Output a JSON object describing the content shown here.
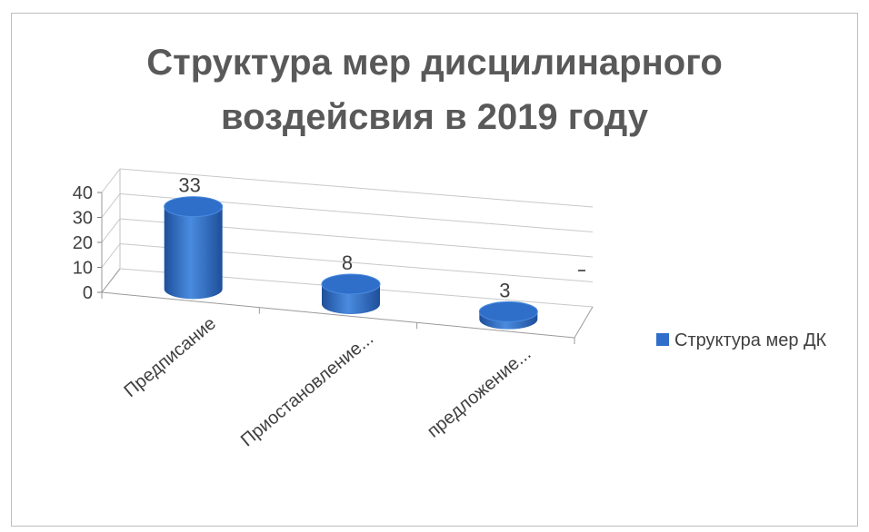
{
  "chart_data": {
    "type": "bar",
    "title_lines": [
      "Структура мер дисцилинарного",
      "воздейсвия в 2019 году"
    ],
    "categories": [
      "Предписание",
      "Приостановление...",
      "предложение..."
    ],
    "series": [
      {
        "name": "Структура мер ДК",
        "values": [
          33,
          8,
          3
        ]
      }
    ],
    "data_labels": [
      "33",
      "8",
      "3"
    ],
    "ylim": [
      0,
      40
    ],
    "y_ticks": [
      "0",
      "10",
      "20",
      "30",
      "40"
    ],
    "grid": true,
    "legend_position": "right",
    "colors": {
      "bar": "#2f6fc9",
      "bar_dark": "#1e4f9a",
      "bar_light": "#4a8be0",
      "grid": "#c8c8c8"
    }
  }
}
